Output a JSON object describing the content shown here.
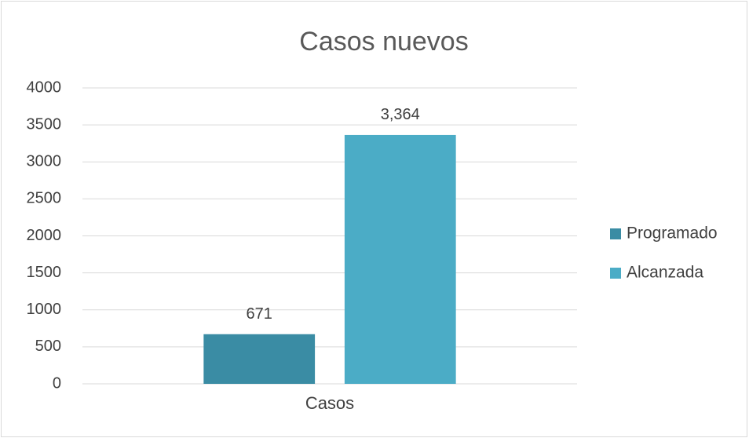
{
  "chart_data": {
    "type": "bar",
    "title": "Casos nuevos",
    "categories": [
      "Casos"
    ],
    "series": [
      {
        "name": "Programado",
        "color": "#3a8ca4",
        "values": [
          671
        ],
        "value_labels": [
          "671"
        ]
      },
      {
        "name": "Alcanzada",
        "color": "#4bacc6",
        "values": [
          3364
        ],
        "value_labels": [
          "3,364"
        ]
      }
    ],
    "ylim": [
      0,
      4000
    ],
    "yticks": [
      0,
      500,
      1000,
      1500,
      2000,
      2500,
      3000,
      3500,
      4000
    ],
    "grid": true,
    "legend": "right"
  }
}
